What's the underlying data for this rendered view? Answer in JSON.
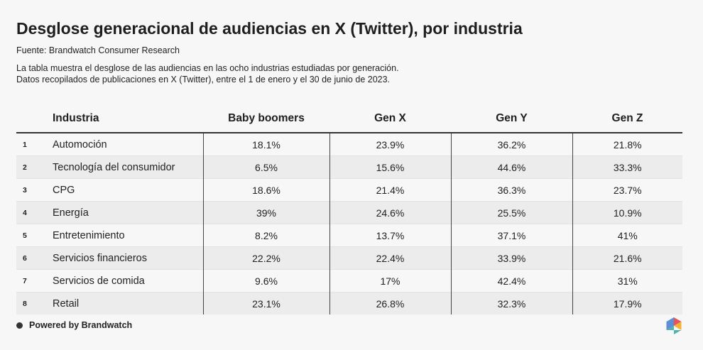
{
  "header": {
    "title": "Desglose generacional de audiencias en X (Twitter), por industria",
    "source": "Fuente: Brandwatch Consumer Research",
    "description_lines": [
      "La tabla muestra el desglose de las audiencias en las ocho industrias estudiadas por generación.",
      "Datos recopilados de publicaciones en X (Twitter), entre el 1 de enero y el 30 de junio de 2023."
    ]
  },
  "chart_data": {
    "type": "table",
    "title": "Desglose generacional de audiencias en X (Twitter), por industria",
    "columns": [
      "",
      "Industria",
      "Baby boomers",
      "Gen X",
      "Gen Y",
      "Gen Z"
    ],
    "rows": [
      {
        "rank": "1",
        "industry": "Automoción",
        "values": [
          "18.1%",
          "23.9%",
          "36.2%",
          "21.8%"
        ]
      },
      {
        "rank": "2",
        "industry": "Tecnología del consumidor",
        "values": [
          "6.5%",
          "15.6%",
          "44.6%",
          "33.3%"
        ]
      },
      {
        "rank": "3",
        "industry": "CPG",
        "values": [
          "18.6%",
          "21.4%",
          "36.3%",
          "23.7%"
        ]
      },
      {
        "rank": "4",
        "industry": "Energía",
        "values": [
          "39%",
          "24.6%",
          "25.5%",
          "10.9%"
        ]
      },
      {
        "rank": "5",
        "industry": "Entretenimiento",
        "values": [
          "8.2%",
          "13.7%",
          "37.1%",
          "41%"
        ]
      },
      {
        "rank": "6",
        "industry": "Servicios financieros",
        "values": [
          "22.2%",
          "22.4%",
          "33.9%",
          "21.6%"
        ]
      },
      {
        "rank": "7",
        "industry": "Servicios de comida",
        "values": [
          "9.6%",
          "17%",
          "42.4%",
          "31%"
        ]
      },
      {
        "rank": "8",
        "industry": "Retail",
        "values": [
          "23.1%",
          "26.8%",
          "32.3%",
          "17.9%"
        ]
      }
    ]
  },
  "footer": {
    "powered_by": "Powered by Brandwatch"
  },
  "colors": {
    "background": "#f7f7f7",
    "row_alt": "#ececec",
    "logo": [
      "#e8545a",
      "#f5b335",
      "#4db6ac",
      "#5c8fd6"
    ]
  }
}
